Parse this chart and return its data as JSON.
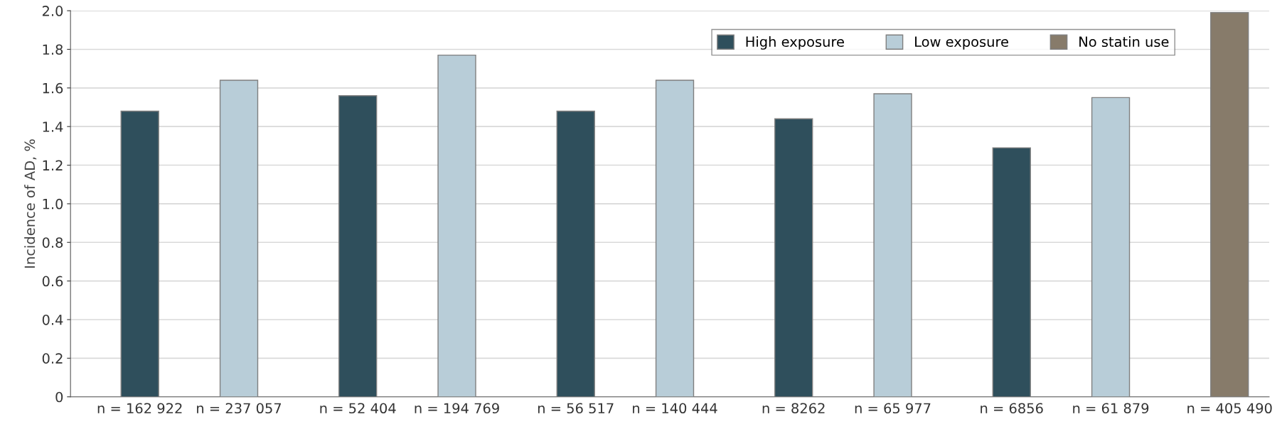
{
  "chart_data": {
    "type": "bar",
    "ylabel": "Incidence of AD, %",
    "categories": [
      "n = 162 922",
      "n = 237 057",
      "n = 52 404",
      "n = 194 769",
      "n = 56 517",
      "n = 140 444",
      "n = 8262",
      "n = 65 977",
      "n = 6856",
      "n = 61 879",
      "n = 405 490"
    ],
    "series": [
      {
        "name": "High exposure",
        "color": "#2f4f5c",
        "values": [
          1.48,
          null,
          1.56,
          null,
          1.48,
          null,
          1.44,
          null,
          1.29,
          null,
          null
        ]
      },
      {
        "name": "Low exposure",
        "color": "#b8cdd8",
        "values": [
          null,
          1.64,
          null,
          1.77,
          null,
          1.64,
          null,
          1.57,
          null,
          1.55,
          null
        ]
      },
      {
        "name": "No statin use",
        "color": "#877b6a",
        "values": [
          null,
          null,
          null,
          null,
          null,
          null,
          null,
          null,
          null,
          null,
          1.99
        ]
      }
    ],
    "ylim": [
      0,
      2.0
    ],
    "yticks": [
      0,
      0.2,
      0.4,
      0.6,
      0.8,
      {
        "value": 1.0,
        "label": "1.0"
      },
      1.2,
      1.4,
      1.6,
      1.8,
      {
        "value": 2.0,
        "label": "2.0"
      }
    ],
    "grid": "y",
    "legend": "top right"
  }
}
